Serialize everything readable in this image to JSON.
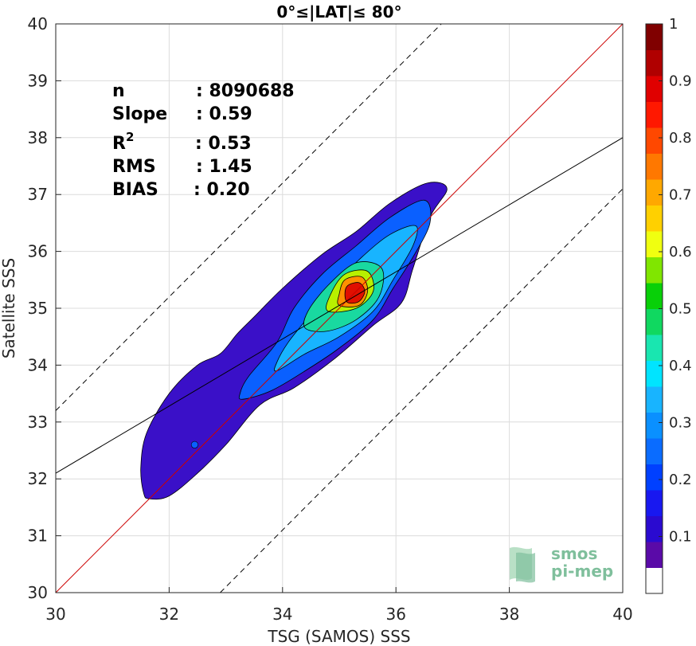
{
  "chart_data": {
    "type": "heatmap",
    "title": "0°≤|LAT|≤ 80°",
    "xlabel": "TSG (SAMOS) SSS",
    "ylabel": "Satellite SSS",
    "xlim": [
      30,
      40
    ],
    "ylim": [
      30,
      40
    ],
    "xticks": [
      "30",
      "32",
      "34",
      "36",
      "38",
      "40"
    ],
    "yticks": [
      "30",
      "31",
      "32",
      "33",
      "34",
      "35",
      "36",
      "37",
      "38",
      "39",
      "40"
    ],
    "grid": true,
    "stats": [
      {
        "key": "n",
        "value": ": 8090688"
      },
      {
        "key": "Slope",
        "value": ": 0.59"
      },
      {
        "key": "R",
        "sup": "2",
        "value": ": 0.53"
      },
      {
        "key": "RMS",
        "value": ": 1.45"
      },
      {
        "key": "BIAS",
        "value": ": 0.20"
      }
    ],
    "colorbar": {
      "range": [
        0,
        1
      ],
      "ticks": [
        "0.1",
        "0.2",
        "0.3",
        "0.4",
        "0.5",
        "0.6",
        "0.7",
        "0.8",
        "0.9",
        "1"
      ],
      "colors": [
        "#ffffff",
        "#5a0aa8",
        "#2a0ad0",
        "#1818f0",
        "#0040ff",
        "#0a6cff",
        "#0a90ff",
        "#18b4ff",
        "#00e4ff",
        "#19e6b0",
        "#10d860",
        "#08d008",
        "#80e600",
        "#f0ff10",
        "#ffd000",
        "#ffa800",
        "#ff7800",
        "#ff4800",
        "#ff1800",
        "#e00000",
        "#b00000",
        "#800000"
      ]
    },
    "lines": [
      {
        "name": "identity",
        "slope": 1,
        "intercept": 0,
        "color": "#cc0000"
      },
      {
        "name": "regression",
        "slope": 0.59,
        "intercept": 14.4,
        "color": "#000000"
      },
      {
        "name": "upper-bound",
        "slope": 1,
        "intercept": 3.2,
        "color": "#000000",
        "dashed": true
      },
      {
        "name": "lower-bound",
        "slope": 1,
        "intercept": -2.9,
        "color": "#000000",
        "dashed": true
      }
    ],
    "density_contours": [
      {
        "level": 0.05,
        "color": "#3a10c8",
        "points": [
          [
            31.65,
            31.65
          ],
          [
            32.0,
            31.7
          ],
          [
            32.5,
            32.1
          ],
          [
            33.0,
            32.6
          ],
          [
            33.6,
            33.3
          ],
          [
            34.2,
            33.6
          ],
          [
            34.9,
            34.1
          ],
          [
            35.6,
            34.7
          ],
          [
            36.1,
            35.1
          ],
          [
            36.3,
            35.7
          ],
          [
            36.6,
            36.6
          ],
          [
            36.9,
            37.1
          ],
          [
            36.55,
            37.2
          ],
          [
            35.9,
            36.85
          ],
          [
            35.3,
            36.35
          ],
          [
            34.7,
            35.95
          ],
          [
            34.0,
            35.35
          ],
          [
            33.5,
            34.85
          ],
          [
            33.2,
            34.55
          ],
          [
            32.9,
            34.2
          ],
          [
            32.5,
            34.0
          ],
          [
            32.0,
            33.5
          ],
          [
            31.6,
            32.8
          ],
          [
            31.5,
            32.2
          ],
          [
            31.55,
            31.75
          ]
        ]
      },
      {
        "level": 0.15,
        "color": "#0a60ff",
        "points": [
          [
            33.3,
            33.4
          ],
          [
            33.8,
            33.55
          ],
          [
            34.4,
            33.9
          ],
          [
            35.0,
            34.3
          ],
          [
            35.6,
            34.8
          ],
          [
            35.95,
            35.35
          ],
          [
            36.3,
            35.9
          ],
          [
            36.6,
            36.5
          ],
          [
            36.5,
            36.9
          ],
          [
            35.9,
            36.6
          ],
          [
            35.3,
            36.1
          ],
          [
            34.7,
            35.6
          ],
          [
            34.2,
            35.0
          ],
          [
            33.9,
            34.4
          ],
          [
            33.4,
            33.8
          ],
          [
            33.25,
            33.5
          ]
        ]
      },
      {
        "level": 0.3,
        "color": "#18b4ff",
        "points": [
          [
            33.9,
            33.9
          ],
          [
            34.4,
            34.2
          ],
          [
            35.0,
            34.5
          ],
          [
            35.6,
            34.95
          ],
          [
            35.95,
            35.5
          ],
          [
            36.3,
            36.1
          ],
          [
            36.35,
            36.45
          ],
          [
            35.9,
            36.3
          ],
          [
            35.4,
            35.9
          ],
          [
            34.9,
            35.4
          ],
          [
            34.5,
            34.9
          ],
          [
            34.1,
            34.4
          ],
          [
            33.9,
            34.05
          ]
        ]
      },
      {
        "level": 0.45,
        "color": "#19d9a0",
        "points": [
          [
            34.4,
            34.65
          ],
          [
            34.8,
            34.6
          ],
          [
            35.3,
            34.8
          ],
          [
            35.7,
            35.2
          ],
          [
            35.75,
            35.7
          ],
          [
            35.3,
            35.8
          ],
          [
            34.8,
            35.4
          ],
          [
            34.45,
            34.95
          ]
        ]
      },
      {
        "level": 0.6,
        "color": "#b8f000",
        "points": [
          [
            34.8,
            34.95
          ],
          [
            35.3,
            35.0
          ],
          [
            35.6,
            35.3
          ],
          [
            35.5,
            35.65
          ],
          [
            35.1,
            35.6
          ],
          [
            34.85,
            35.25
          ]
        ]
      },
      {
        "level": 0.75,
        "color": "#ff9000",
        "points": [
          [
            35.0,
            35.05
          ],
          [
            35.35,
            35.05
          ],
          [
            35.5,
            35.3
          ],
          [
            35.4,
            35.55
          ],
          [
            35.1,
            35.5
          ],
          [
            35.0,
            35.25
          ]
        ]
      },
      {
        "level": 0.9,
        "color": "#e01000",
        "points": [
          [
            35.15,
            35.1
          ],
          [
            35.35,
            35.12
          ],
          [
            35.45,
            35.3
          ],
          [
            35.35,
            35.45
          ],
          [
            35.15,
            35.4
          ],
          [
            35.1,
            35.25
          ]
        ]
      }
    ],
    "isolated_blobs": [
      {
        "level": 0.15,
        "color": "#0a60ff",
        "cx": 32.45,
        "cy": 32.6,
        "rx": 0.06,
        "ry": 0.06
      }
    ],
    "logo": [
      "smos",
      "pi-mep"
    ]
  }
}
